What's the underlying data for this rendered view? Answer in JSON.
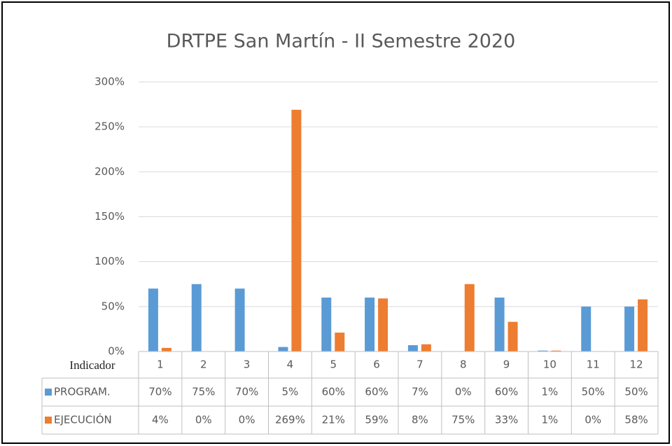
{
  "chart_data": {
    "type": "bar",
    "title": "DRTPE San Martín - II Semestre 2020",
    "table_header": "Indicador",
    "categories": [
      "1",
      "2",
      "3",
      "4",
      "5",
      "6",
      "7",
      "8",
      "9",
      "10",
      "11",
      "12"
    ],
    "series": [
      {
        "name": "PROGRAM.",
        "color": "#5b9bd5",
        "values": [
          70,
          75,
          70,
          5,
          60,
          60,
          7,
          0,
          60,
          1,
          50,
          50
        ],
        "value_labels": [
          "70%",
          "75%",
          "70%",
          "5%",
          "60%",
          "60%",
          "7%",
          "0%",
          "60%",
          "1%",
          "50%",
          "50%"
        ]
      },
      {
        "name": "EJECUCIÓN",
        "color": "#ed7d31",
        "values": [
          4,
          0,
          0,
          269,
          21,
          59,
          8,
          75,
          33,
          1,
          0,
          58
        ],
        "value_labels": [
          "4%",
          "0%",
          "0%",
          "269%",
          "21%",
          "59%",
          "8%",
          "75%",
          "33%",
          "1%",
          "0%",
          "58%"
        ]
      }
    ],
    "ylim": [
      0,
      300
    ],
    "yticks": [
      {
        "value": 0,
        "label": "0%"
      },
      {
        "value": 50,
        "label": "50%"
      },
      {
        "value": 100,
        "label": "100%"
      },
      {
        "value": 150,
        "label": "150%"
      },
      {
        "value": 200,
        "label": "200%"
      },
      {
        "value": 250,
        "label": "250%"
      },
      {
        "value": 300,
        "label": "300%"
      }
    ],
    "grid": true
  }
}
